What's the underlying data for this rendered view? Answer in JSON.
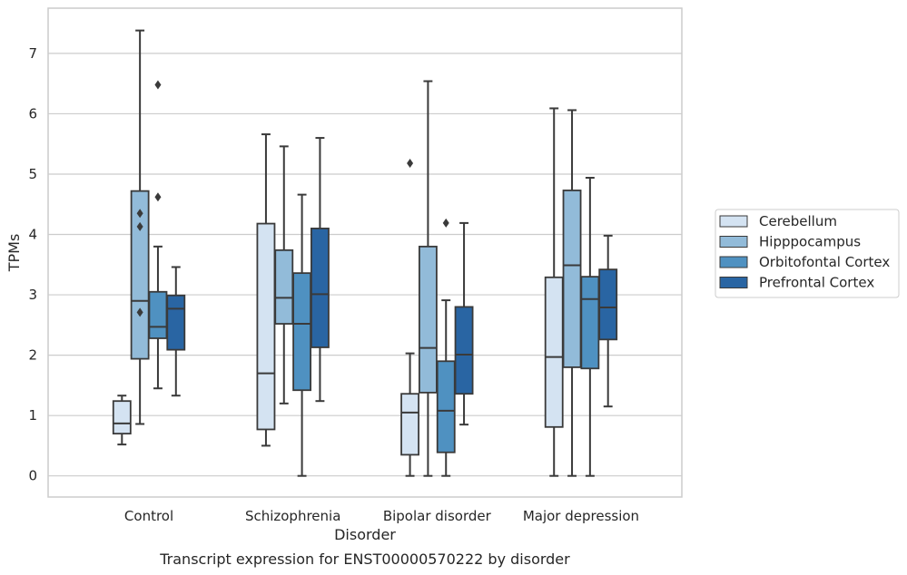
{
  "chart_data": {
    "type": "box",
    "title": "Transcript expression for ENST00000570222 by disorder",
    "xlabel": "Disorder",
    "ylabel": "TPMs",
    "ylim": [
      -0.35,
      7.75
    ],
    "yticks": [
      0,
      1,
      2,
      3,
      4,
      5,
      6,
      7
    ],
    "grid": true,
    "legend_position": "right",
    "categories": [
      "Control",
      "Schizophrenia",
      "Bipolar disorder",
      "Major depression"
    ],
    "series": [
      {
        "name": "Cerebellum",
        "color": "#d4e3f2",
        "boxes": [
          {
            "whislo": 0.52,
            "q1": 0.7,
            "med": 0.87,
            "q3": 1.24,
            "whishi": 1.33,
            "fliers": []
          },
          {
            "whislo": 0.5,
            "q1": 0.77,
            "med": 1.7,
            "q3": 4.18,
            "whishi": 5.66,
            "fliers": []
          },
          {
            "whislo": 0.0,
            "q1": 0.35,
            "med": 1.05,
            "q3": 1.36,
            "whishi": 2.03,
            "fliers": [
              5.18
            ]
          },
          {
            "whislo": 0.0,
            "q1": 0.81,
            "med": 1.97,
            "q3": 3.29,
            "whishi": 6.09,
            "fliers": []
          }
        ]
      },
      {
        "name": "Hipppocampus",
        "color": "#92bbd9",
        "boxes": [
          {
            "whislo": 0.86,
            "q1": 1.94,
            "med": 2.9,
            "q3": 4.72,
            "whishi": 7.38,
            "fliers": [
              2.71,
              4.13,
              4.35
            ]
          },
          {
            "whislo": 1.2,
            "q1": 2.52,
            "med": 2.95,
            "q3": 3.74,
            "whishi": 5.46,
            "fliers": []
          },
          {
            "whislo": 0.0,
            "q1": 1.38,
            "med": 2.12,
            "q3": 3.8,
            "whishi": 6.54,
            "fliers": []
          },
          {
            "whislo": 0.0,
            "q1": 1.8,
            "med": 3.49,
            "q3": 4.73,
            "whishi": 6.06,
            "fliers": []
          }
        ]
      },
      {
        "name": "Orbitofontal Cortex",
        "color": "#4f91c1",
        "boxes": [
          {
            "whislo": 1.45,
            "q1": 2.28,
            "med": 2.47,
            "q3": 3.05,
            "whishi": 3.8,
            "fliers": [
              4.62,
              6.48
            ]
          },
          {
            "whislo": 0.0,
            "q1": 1.42,
            "med": 2.52,
            "q3": 3.36,
            "whishi": 4.66,
            "fliers": []
          },
          {
            "whislo": 0.0,
            "q1": 0.39,
            "med": 1.08,
            "q3": 1.9,
            "whishi": 2.91,
            "fliers": [
              4.19
            ]
          },
          {
            "whislo": 0.0,
            "q1": 1.78,
            "med": 2.93,
            "q3": 3.3,
            "whishi": 4.94,
            "fliers": []
          }
        ]
      },
      {
        "name": "Prefrontal Cortex",
        "color": "#2965a3",
        "boxes": [
          {
            "whislo": 1.33,
            "q1": 2.09,
            "med": 2.77,
            "q3": 2.99,
            "whishi": 3.46,
            "fliers": []
          },
          {
            "whislo": 1.24,
            "q1": 2.13,
            "med": 3.01,
            "q3": 4.1,
            "whishi": 5.6,
            "fliers": []
          },
          {
            "whislo": 0.85,
            "q1": 1.36,
            "med": 2.01,
            "q3": 2.8,
            "whishi": 4.19,
            "fliers": []
          },
          {
            "whislo": 1.15,
            "q1": 2.26,
            "med": 2.79,
            "q3": 3.42,
            "whishi": 3.98,
            "fliers": []
          }
        ]
      }
    ]
  }
}
